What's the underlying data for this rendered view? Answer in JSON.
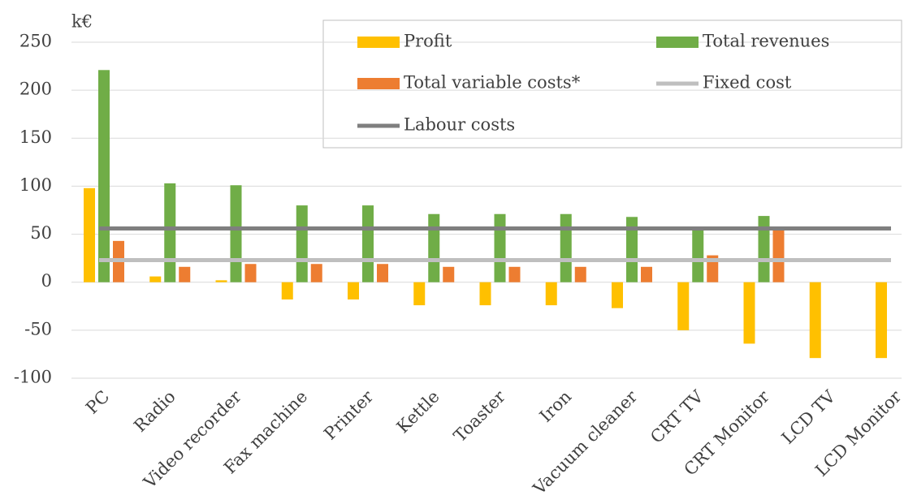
{
  "chart_data": {
    "type": "bar",
    "y_label": "k€",
    "categories": [
      "PC",
      "Radio",
      "Video recorder",
      "Fax machine",
      "Printer",
      "Kettle",
      "Toaster",
      "Iron",
      "Vacuum cleaner",
      "CRT TV",
      "CRT Monitor",
      "LCD TV",
      "LCD Monitor"
    ],
    "series": [
      {
        "name": "Profit",
        "type": "bar",
        "color": "#ffc000",
        "values": [
          98,
          6,
          2,
          -18,
          -18,
          -24,
          -24,
          -24,
          -27,
          -50,
          -64,
          -79,
          -79
        ]
      },
      {
        "name": "Total revenues",
        "type": "bar",
        "color": "#70ad47",
        "values": [
          221,
          103,
          101,
          80,
          80,
          71,
          71,
          71,
          68,
          55,
          69,
          null,
          null
        ]
      },
      {
        "name": "Total variable costs*",
        "type": "bar",
        "color": "#ed7d31",
        "values": [
          43,
          16,
          19,
          19,
          19,
          16,
          16,
          16,
          16,
          28,
          55,
          null,
          null
        ]
      },
      {
        "name": "Fixed cost",
        "type": "line",
        "color": "#bfbfbf",
        "values": [
          23,
          23,
          23,
          23,
          23,
          23,
          23,
          23,
          23,
          23,
          23,
          23,
          23
        ]
      },
      {
        "name": "Labour costs",
        "type": "line",
        "color": "#7f7f7f",
        "values": [
          56,
          56,
          56,
          56,
          56,
          56,
          56,
          56,
          56,
          56,
          56,
          56,
          56
        ]
      }
    ],
    "ylim": [
      -100,
      250
    ],
    "yticks": [
      -100,
      -50,
      0,
      50,
      100,
      150,
      200,
      250
    ],
    "grid": true
  }
}
